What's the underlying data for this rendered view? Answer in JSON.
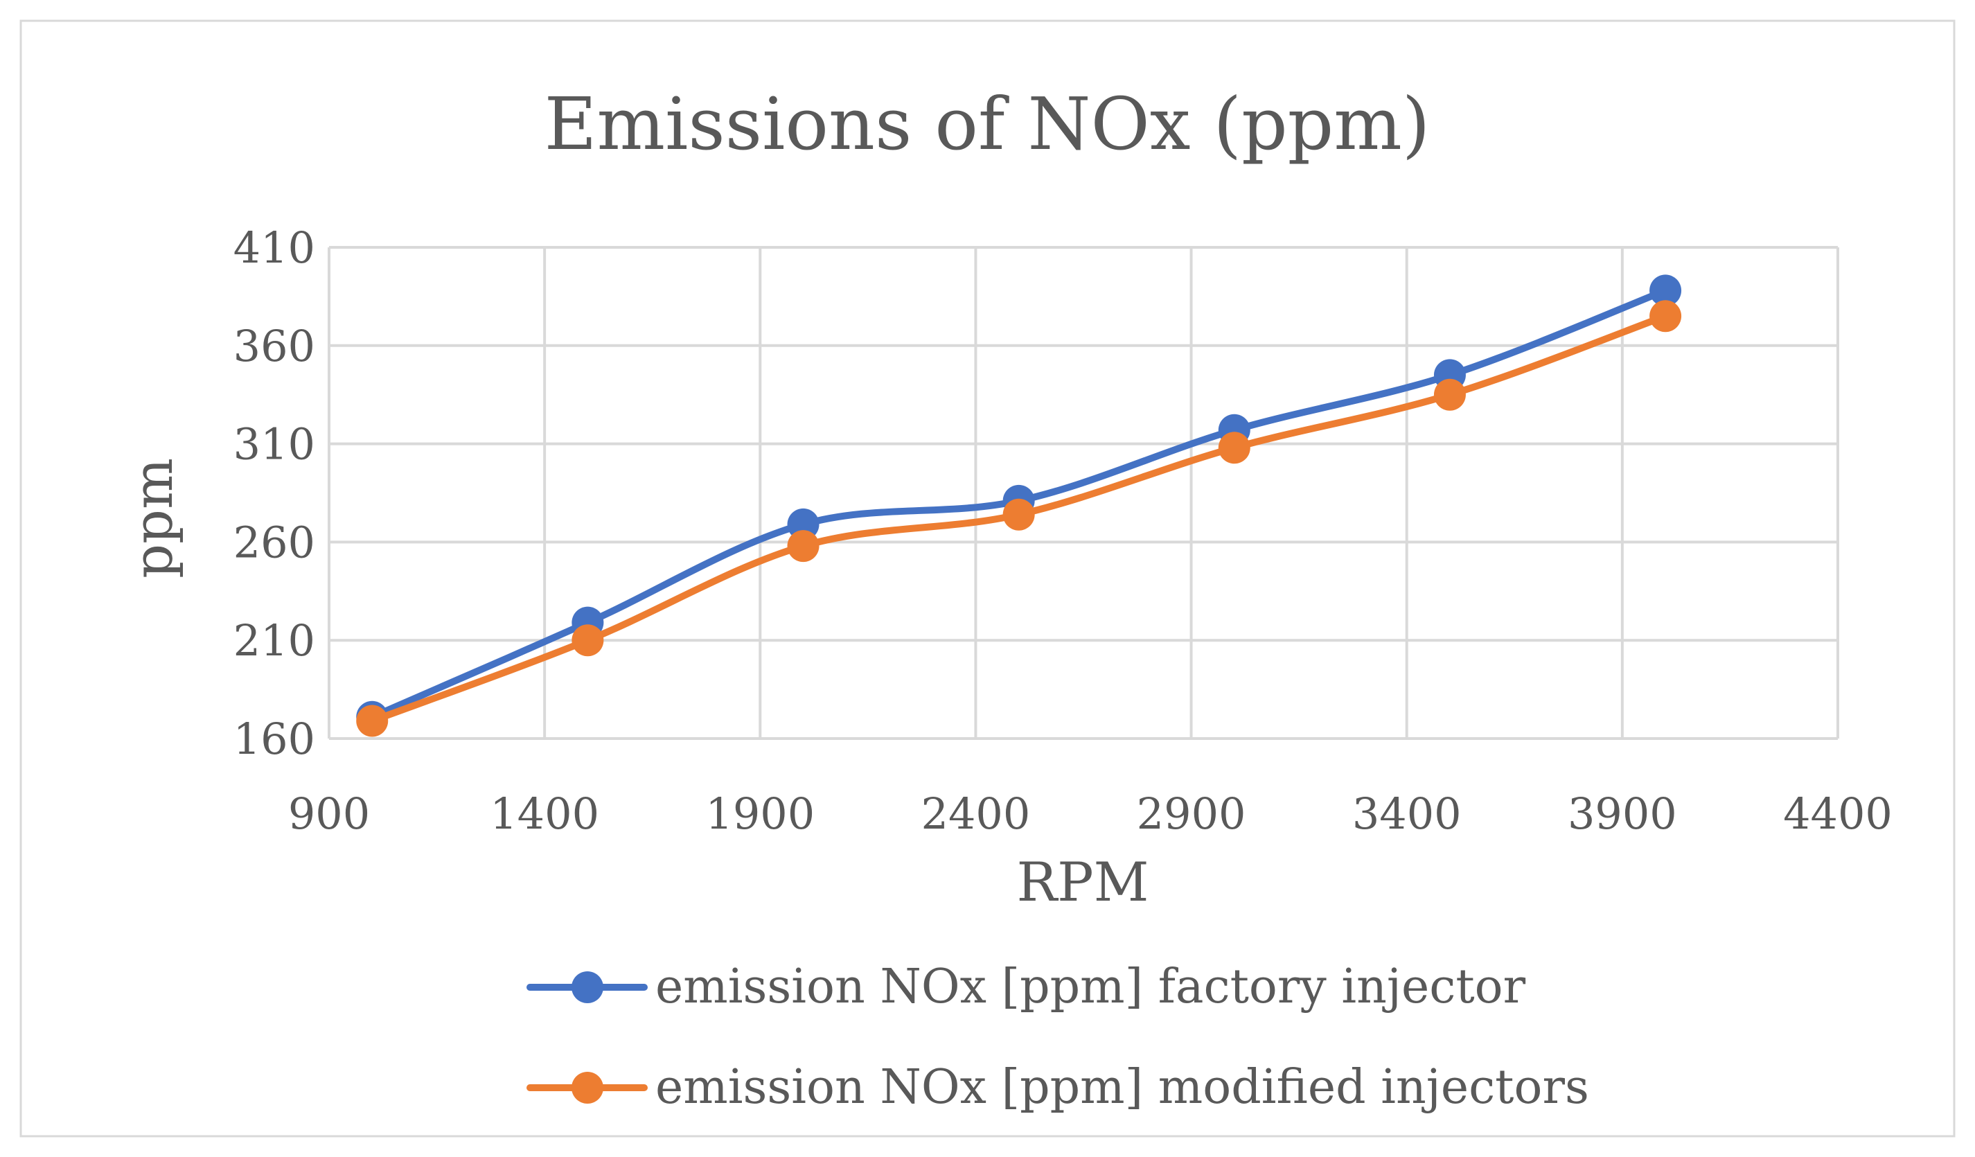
{
  "chart_data": {
    "type": "scatter",
    "title": "Emissions of NOx (ppm)",
    "xlabel": "RPM",
    "ylabel": "ppm",
    "xlim": [
      900,
      4400
    ],
    "ylim": [
      160,
      410
    ],
    "xticks": [
      900,
      1400,
      1900,
      2400,
      2900,
      3400,
      3900,
      4400
    ],
    "yticks": [
      160,
      210,
      260,
      310,
      360,
      410
    ],
    "grid": true,
    "smooth_lines": true,
    "legend_position": "bottom",
    "series": [
      {
        "name": "emission NOx [ppm] factory injector",
        "color": "#4472c4",
        "x": [
          1000,
          1500,
          2000,
          2500,
          3000,
          3500,
          4000
        ],
        "y": [
          171,
          219,
          269,
          281,
          317,
          345,
          388
        ]
      },
      {
        "name": "emission NOx [ppm] modified injectors",
        "color": "#ed7d31",
        "x": [
          1000,
          1500,
          2000,
          2500,
          3000,
          3500,
          4000
        ],
        "y": [
          169,
          210,
          258,
          274,
          308,
          335,
          375
        ]
      }
    ]
  }
}
